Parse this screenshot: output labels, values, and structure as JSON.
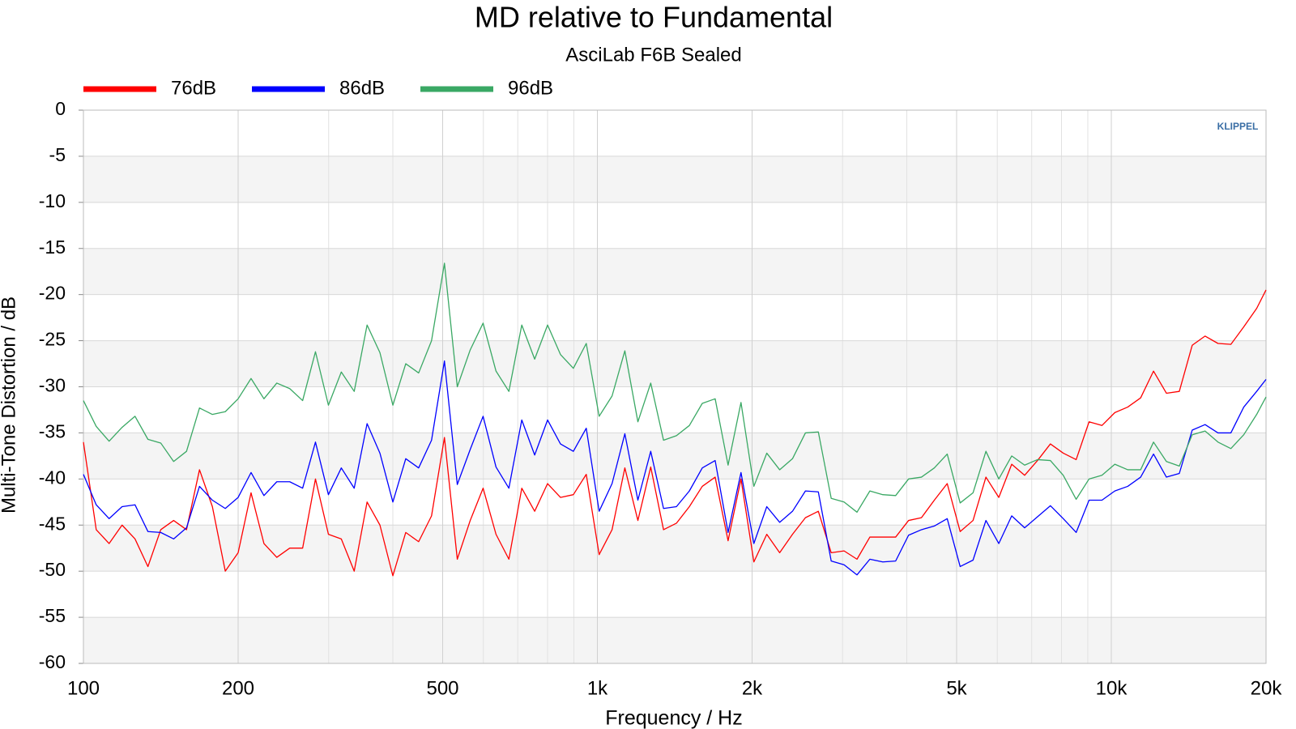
{
  "chart_data": {
    "type": "line",
    "title": "MD relative to Fundamental",
    "subtitle": "AsciLab F6B Sealed",
    "xlabel": "Frequency / Hz",
    "ylabel": "Multi-Tone Distortion / dB",
    "watermark": "KLIPPEL",
    "xscale": "log",
    "xlim": [
      100,
      20000
    ],
    "ylim": [
      -60,
      0
    ],
    "xticks": [
      100,
      200,
      500,
      {
        "value": 1000,
        "label": "1k"
      },
      {
        "value": 2000,
        "label": "2k"
      },
      {
        "value": 5000,
        "label": "5k"
      },
      {
        "value": 10000,
        "label": "10k"
      },
      {
        "value": 20000,
        "label": "20k"
      }
    ],
    "xminorticks": [
      300,
      400,
      600,
      700,
      800,
      900,
      3000,
      4000,
      6000,
      7000,
      8000,
      9000
    ],
    "yticks": [
      0,
      -5,
      -10,
      -15,
      -20,
      -25,
      -30,
      -35,
      -40,
      -45,
      -50,
      -55,
      -60
    ],
    "grid": true,
    "bands": true,
    "legend": "top-left",
    "x": [
      100,
      105.9,
      112.2,
      118.9,
      126,
      133.5,
      141.4,
      149.8,
      158.7,
      168.2,
      178.2,
      188.8,
      200,
      211.9,
      224.5,
      237.8,
      252,
      267,
      282.8,
      299.7,
      317.5,
      336.4,
      356.4,
      377.5,
      400,
      423.8,
      449,
      475.7,
      504,
      533.9,
      565.7,
      599.3,
      635,
      672.7,
      712.7,
      755.1,
      800,
      847.6,
      898,
      951.4,
      1008,
      1068,
      1131,
      1199,
      1270,
      1345,
      1425,
      1510,
      1600,
      1695,
      1796,
      1903,
      2016,
      2136,
      2263,
      2397,
      2540,
      2691,
      2851,
      3020,
      3200,
      3390,
      3592,
      3805,
      4032,
      4271,
      4525,
      4794,
      5080,
      5382,
      5702,
      6041,
      6400,
      6781,
      7184,
      7611,
      8063,
      8543,
      9051,
      9589,
      10159,
      10763,
      11404,
      12082,
      12800,
      13561,
      14368,
      15222,
      16127,
      17086,
      18102,
      19178,
      20000
    ],
    "series": [
      {
        "name": "76dB",
        "color": "#ff0000",
        "values": [
          -36,
          -45.5,
          -47,
          -45,
          -46.5,
          -49.5,
          -45.5,
          -44.5,
          -45.5,
          -39,
          -43,
          -50,
          -48,
          -41.5,
          -47,
          -48.5,
          -47.5,
          -47.5,
          -40,
          -46,
          -46.5,
          -50,
          -42.5,
          -45,
          -50.5,
          -45.8,
          -46.8,
          -44,
          -35.5,
          -48.7,
          -44.5,
          -41,
          -46,
          -48.7,
          -41,
          -43.5,
          -40.5,
          -42,
          -41.7,
          -39.5,
          -48.2,
          -45.5,
          -38.8,
          -44.5,
          -38.7,
          -45.5,
          -44.8,
          -43,
          -40.8,
          -39.8,
          -46.7,
          -40,
          -49,
          -46,
          -48,
          -46,
          -44.2,
          -43.5,
          -48,
          -47.8,
          -48.7,
          -46.3,
          -46.3,
          -46.3,
          -44.5,
          -44.2,
          -42.3,
          -40.5,
          -45.7,
          -44.5,
          -39.8,
          -42,
          -38.4,
          -39.6,
          -38,
          -36.2,
          -37.2,
          -37.9,
          -33.8,
          -34.2,
          -32.8,
          -32.2,
          -31.2,
          -28.3,
          -30.7,
          -30.5,
          -25.5,
          -24.5,
          -25.3,
          -25.4,
          -23.5,
          -21.5,
          -19.5
        ]
      },
      {
        "name": "86dB",
        "color": "#0000ff",
        "values": [
          -39.5,
          -42.8,
          -44.3,
          -43,
          -42.8,
          -45.7,
          -45.8,
          -46.5,
          -45.3,
          -40.8,
          -42.3,
          -43.2,
          -42,
          -39.3,
          -41.8,
          -40.3,
          -40.3,
          -41,
          -36,
          -41.7,
          -38.8,
          -41,
          -34,
          -37.2,
          -42.5,
          -37.8,
          -38.8,
          -35.8,
          -27.2,
          -40.6,
          -36.8,
          -33.2,
          -38.7,
          -41,
          -33.6,
          -37.4,
          -33.6,
          -36.2,
          -37,
          -34.5,
          -43.5,
          -40.5,
          -35.1,
          -42.3,
          -37,
          -43.2,
          -43,
          -41.3,
          -38.8,
          -38,
          -45.8,
          -39.3,
          -47,
          -43,
          -44.7,
          -43.5,
          -41.3,
          -41.4,
          -48.9,
          -49.3,
          -50.4,
          -48.7,
          -49,
          -48.9,
          -46.1,
          -45.5,
          -45.1,
          -44.3,
          -49.5,
          -48.8,
          -44.5,
          -47,
          -44,
          -45.3,
          -44.1,
          -42.9,
          -44.3,
          -45.8,
          -42.3,
          -42.3,
          -41.3,
          -40.8,
          -39.8,
          -37.3,
          -39.8,
          -39.4,
          -34.7,
          -34.1,
          -35,
          -35,
          -32.2,
          -30.5,
          -29.2
        ]
      },
      {
        "name": "96dB",
        "color": "#3aa864",
        "values": [
          -31.5,
          -34.3,
          -35.9,
          -34.4,
          -33.2,
          -35.7,
          -36.1,
          -38.1,
          -37,
          -32.3,
          -33,
          -32.7,
          -31.3,
          -29.1,
          -31.3,
          -29.6,
          -30.2,
          -31.5,
          -26.2,
          -32,
          -28.4,
          -30.5,
          -23.3,
          -26.3,
          -32,
          -27.5,
          -28.5,
          -25,
          -16.6,
          -30,
          -26,
          -23.1,
          -28.3,
          -30.5,
          -23.3,
          -27,
          -23.3,
          -26.5,
          -28,
          -25.3,
          -33.2,
          -31,
          -26.1,
          -33.8,
          -29.6,
          -35.8,
          -35.3,
          -34.2,
          -31.8,
          -31.3,
          -38.5,
          -31.7,
          -40.8,
          -37.2,
          -39,
          -37.8,
          -35,
          -34.9,
          -42.1,
          -42.5,
          -43.6,
          -41.3,
          -41.7,
          -41.8,
          -40,
          -39.8,
          -38.8,
          -37.3,
          -42.6,
          -41.5,
          -37,
          -40,
          -37.5,
          -38.5,
          -37.9,
          -38,
          -39.6,
          -42.2,
          -40,
          -39.6,
          -38.4,
          -39,
          -39,
          -36,
          -38.1,
          -38.6,
          -35.2,
          -34.8,
          -36,
          -36.7,
          -35.2,
          -33,
          -31.1
        ]
      }
    ]
  }
}
